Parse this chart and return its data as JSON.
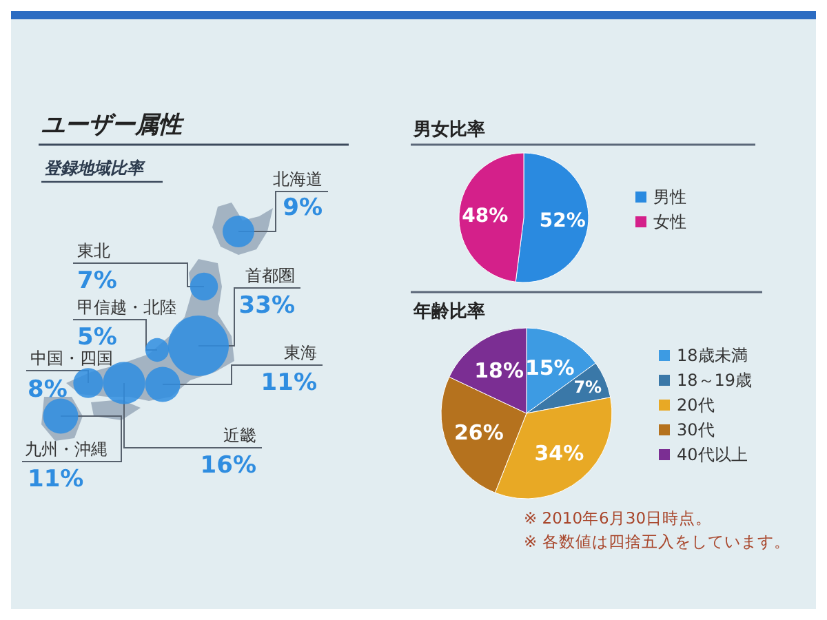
{
  "chart_data": [
    {
      "type": "other",
      "title": "ユーザー属性",
      "subtitle": "登録地域比率",
      "categories": [
        "北海道",
        "東北",
        "首都圏",
        "甲信越・北陸",
        "東海",
        "近畿",
        "中国・四国",
        "九州・沖縄"
      ],
      "values": [
        9,
        7,
        33,
        5,
        11,
        16,
        8,
        11
      ],
      "value_labels": [
        "9%",
        "7%",
        "33%",
        "5%",
        "11%",
        "16%",
        "8%",
        "11%"
      ],
      "color": "#2f8de0"
    },
    {
      "type": "pie",
      "title": "男女比率",
      "categories": [
        "男性",
        "女性"
      ],
      "values": [
        52,
        48
      ],
      "value_labels": [
        "52%",
        "48%"
      ],
      "colors": [
        "#2a8ae0",
        "#d4208a"
      ],
      "legend": "right"
    },
    {
      "type": "pie",
      "title": "年齢比率",
      "categories": [
        "18歳未満",
        "18～19歳",
        "20代",
        "30代",
        "40代以上"
      ],
      "values": [
        15,
        7,
        34,
        26,
        18
      ],
      "value_labels": [
        "15%",
        "7%",
        "34%",
        "26%",
        "18%"
      ],
      "colors": [
        "#3d9be3",
        "#3a78a8",
        "#e8a925",
        "#b5721e",
        "#7b2e93"
      ],
      "legend": "right",
      "annotations": [
        "※ 2010年6月30日時点。",
        "※ 各数値は四捨五入をしています。"
      ]
    }
  ]
}
